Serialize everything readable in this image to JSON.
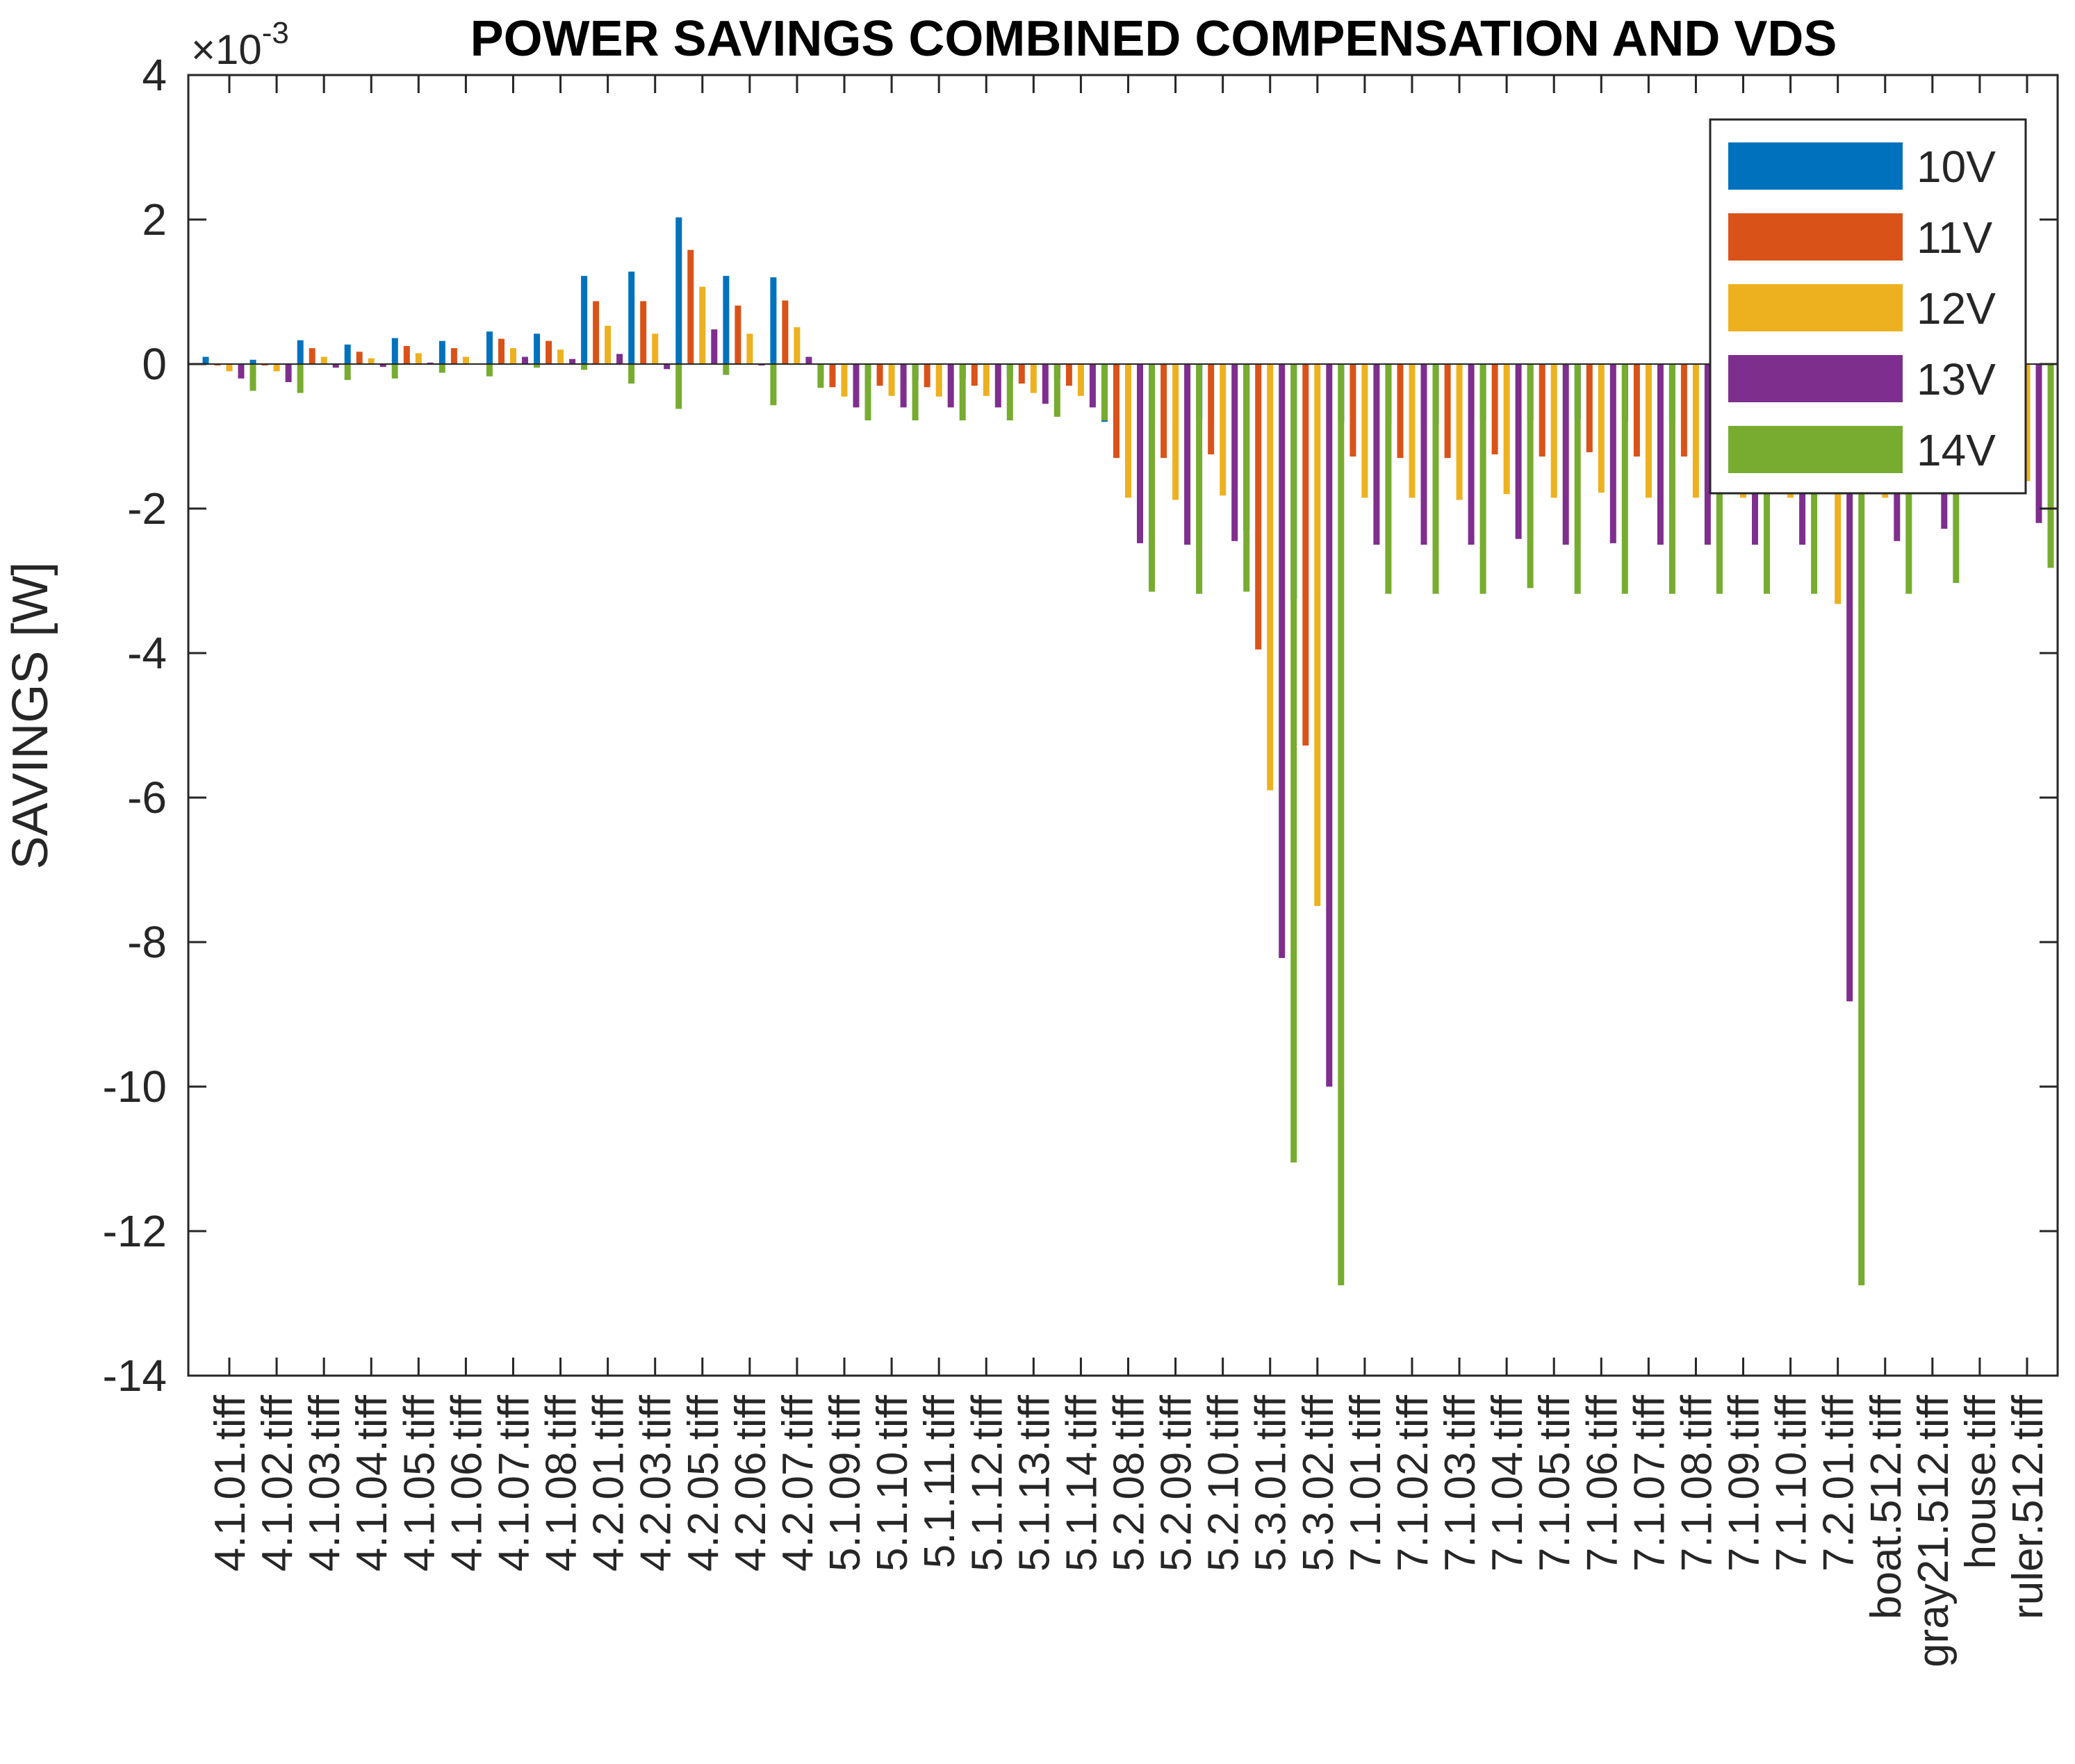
{
  "chart_data": {
    "type": "bar",
    "title": "POWER SAVINGS COMBINED COMPENSATION AND VDS",
    "ylabel": "SAVINGS  [W]",
    "xlabel": "",
    "y_exponent_label": "×10",
    "y_exponent_power": "-3",
    "ylim": [
      -14,
      4
    ],
    "yticks": [
      -14,
      -12,
      -10,
      -8,
      -6,
      -4,
      -2,
      0,
      2,
      4
    ],
    "ytick_labels": [
      "-14",
      "-12",
      "-10",
      "-8",
      "-6",
      "-4",
      "-2",
      "0",
      "2",
      "4"
    ],
    "y_scale": "linear",
    "grid": false,
    "legend_position": "top-right",
    "categories": [
      "4.1.01.tiff",
      "4.1.02.tiff",
      "4.1.03.tiff",
      "4.1.04.tiff",
      "4.1.05.tiff",
      "4.1.06.tiff",
      "4.1.07.tiff",
      "4.1.08.tiff",
      "4.2.01.tiff",
      "4.2.03.tiff",
      "4.2.05.tiff",
      "4.2.06.tiff",
      "4.2.07.tiff",
      "5.1.09.tiff",
      "5.1.10.tiff",
      "5.1.11.tiff",
      "5.1.12.tiff",
      "5.1.13.tiff",
      "5.1.14.tiff",
      "5.2.08.tiff",
      "5.2.09.tiff",
      "5.2.10.tiff",
      "5.3.01.tiff",
      "5.3.02.tiff",
      "7.1.01.tiff",
      "7.1.02.tiff",
      "7.1.03.tiff",
      "7.1.04.tiff",
      "7.1.05.tiff",
      "7.1.06.tiff",
      "7.1.07.tiff",
      "7.1.08.tiff",
      "7.1.09.tiff",
      "7.1.10.tiff",
      "7.2.01.tiff",
      "boat.512.tiff",
      "gray21.512.tiff",
      "house.tiff",
      "ruler.512.tiff"
    ],
    "series": [
      {
        "name": "10V",
        "color": "#0072BD",
        "values": [
          0.1,
          0.06,
          0.33,
          0.27,
          0.36,
          0.32,
          0.45,
          0.42,
          1.22,
          1.28,
          2.03,
          1.22,
          1.2,
          -0.22,
          -0.2,
          -0.22,
          -0.2,
          -0.18,
          -0.2,
          -0.8,
          -0.82,
          -0.76,
          -2.3,
          -3.25,
          -0.8,
          -0.82,
          -0.82,
          -0.78,
          -0.78,
          -0.75,
          -0.8,
          -0.8,
          -0.8,
          -0.8,
          -0.8,
          -0.8,
          -0.75,
          -0.1,
          -0.7
        ]
      },
      {
        "name": "11V",
        "color": "#D95319",
        "values": [
          -0.02,
          -0.02,
          0.22,
          0.17,
          0.25,
          0.22,
          0.35,
          0.32,
          0.87,
          0.87,
          1.58,
          0.81,
          0.88,
          -0.32,
          -0.3,
          -0.32,
          -0.3,
          -0.27,
          -0.3,
          -1.3,
          -1.3,
          -1.25,
          -3.95,
          -5.28,
          -1.28,
          -1.3,
          -1.3,
          -1.25,
          -1.28,
          -1.22,
          -1.28,
          -1.28,
          -1.28,
          -1.28,
          -1.28,
          -1.28,
          -1.2,
          -0.15,
          -1.1
        ]
      },
      {
        "name": "12V",
        "color": "#EDB120",
        "values": [
          -0.1,
          -0.1,
          0.1,
          0.08,
          0.15,
          0.1,
          0.22,
          0.2,
          0.53,
          0.42,
          1.07,
          0.42,
          0.51,
          -0.45,
          -0.44,
          -0.45,
          -0.44,
          -0.4,
          -0.44,
          -1.85,
          -1.88,
          -1.82,
          -5.9,
          -7.5,
          -1.85,
          -1.85,
          -1.88,
          -1.8,
          -1.85,
          -1.78,
          -1.85,
          -1.85,
          -1.85,
          -1.85,
          -3.32,
          -1.85,
          -1.7,
          -0.2,
          -1.62
        ]
      },
      {
        "name": "13V",
        "color": "#7E2F8E",
        "values": [
          -0.2,
          -0.25,
          -0.05,
          -0.04,
          0.02,
          0.01,
          0.1,
          0.07,
          0.14,
          -0.07,
          0.48,
          -0.02,
          0.1,
          -0.6,
          -0.6,
          -0.6,
          -0.6,
          -0.55,
          -0.6,
          -2.48,
          -2.5,
          -2.45,
          -8.22,
          -10.0,
          -2.5,
          -2.5,
          -2.5,
          -2.42,
          -2.5,
          -2.48,
          -2.5,
          -2.5,
          -2.5,
          -2.5,
          -8.82,
          -2.45,
          -2.28,
          -0.25,
          -2.2
        ]
      },
      {
        "name": "14V",
        "color": "#77AC30",
        "values": [
          -0.37,
          -0.4,
          -0.22,
          -0.2,
          -0.12,
          -0.17,
          -0.05,
          -0.08,
          -0.27,
          -0.62,
          -0.15,
          -0.57,
          -0.33,
          -0.78,
          -0.78,
          -0.78,
          -0.78,
          -0.73,
          -0.78,
          -3.15,
          -3.18,
          -3.15,
          -11.05,
          -12.75,
          -3.18,
          -3.18,
          -3.18,
          -3.1,
          -3.18,
          -3.18,
          -3.18,
          -3.18,
          -3.18,
          -3.18,
          -12.75,
          -3.18,
          -3.03,
          -0.3,
          -2.82
        ]
      }
    ]
  }
}
